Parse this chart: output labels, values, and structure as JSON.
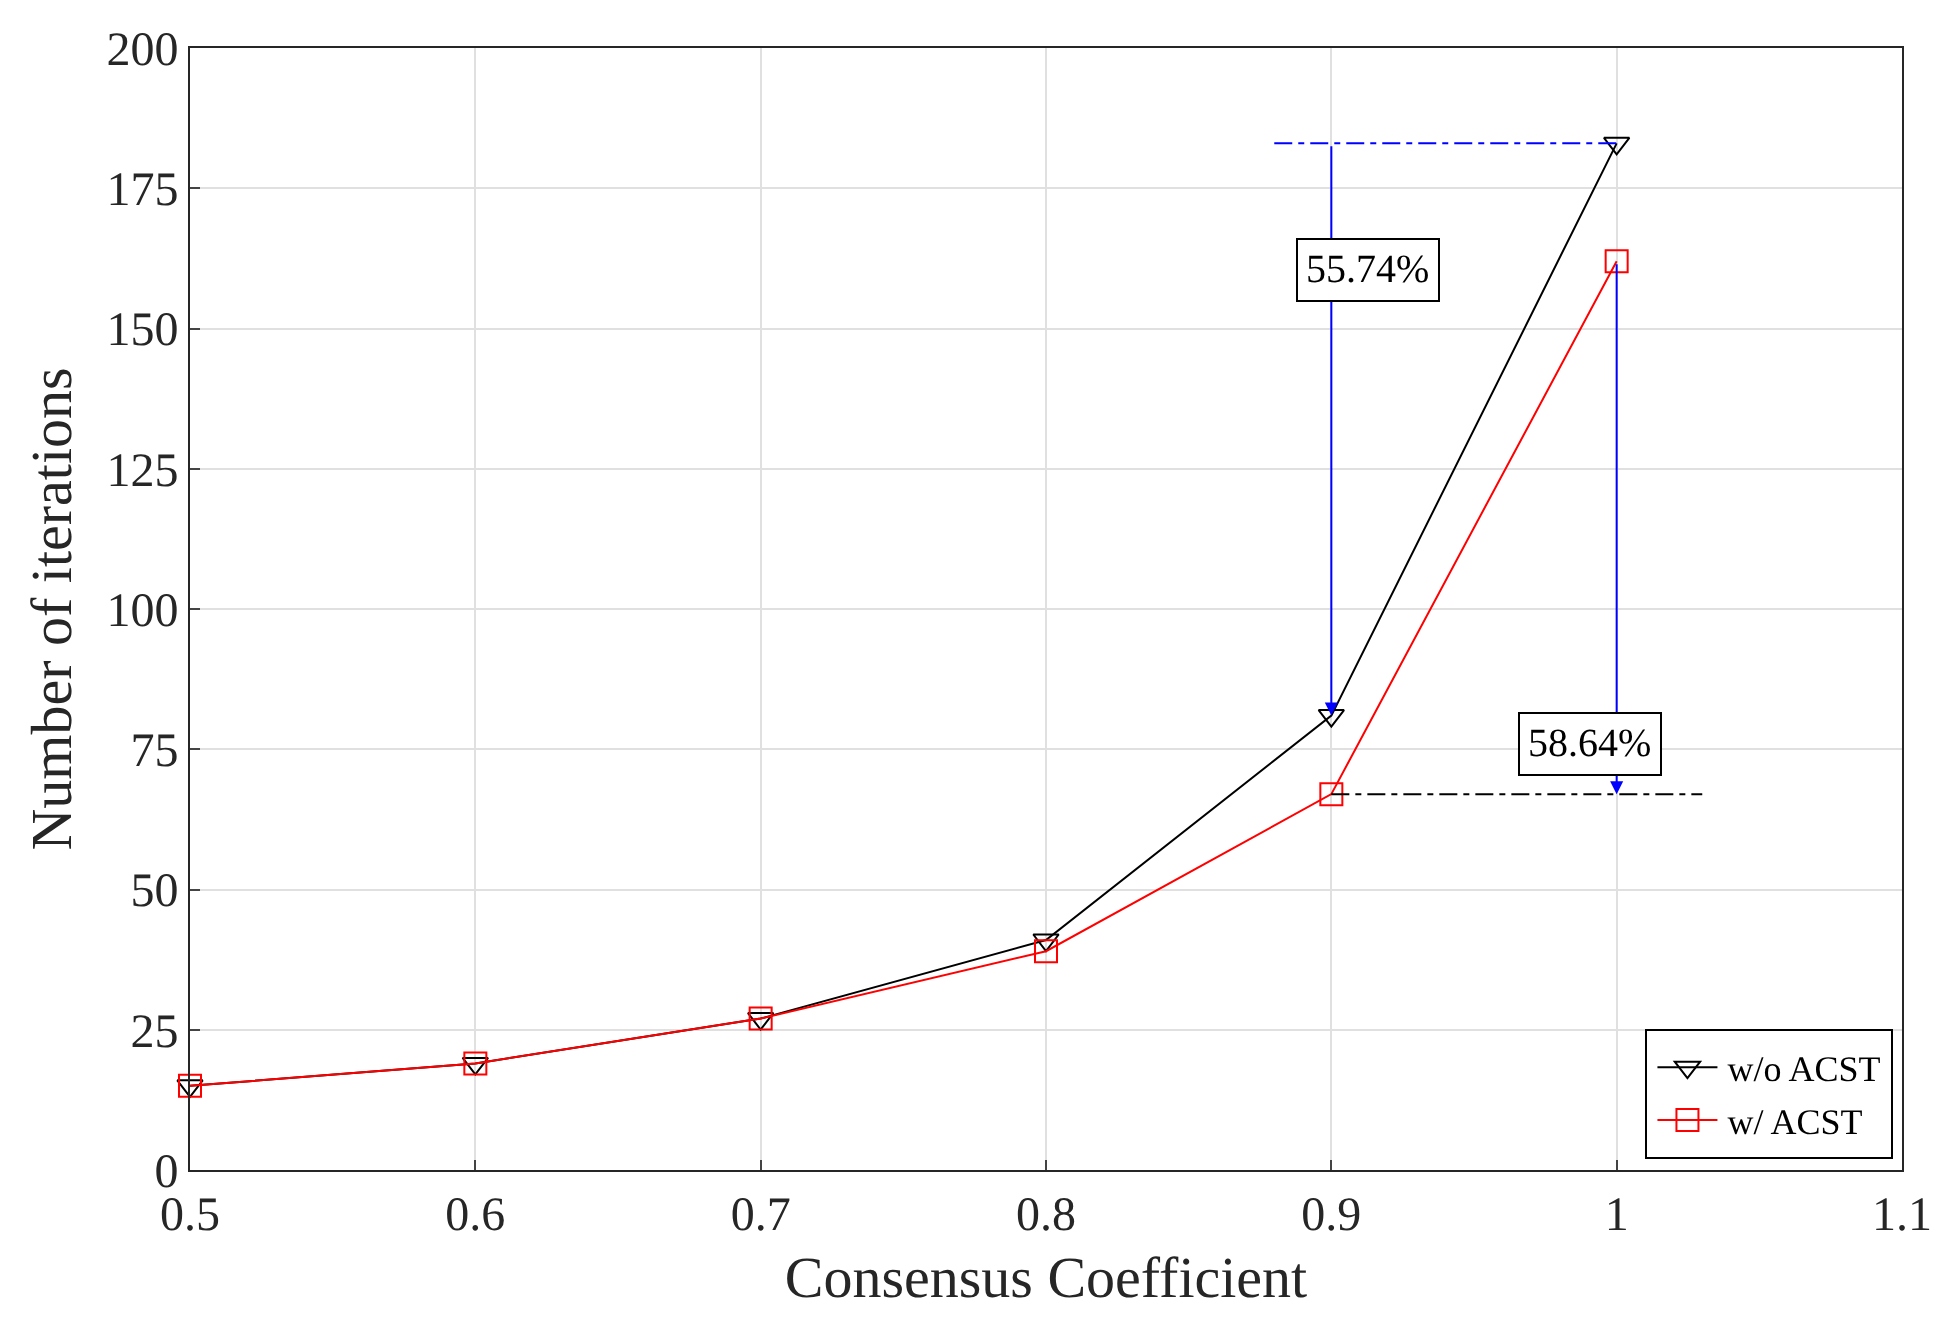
{
  "chart_data": {
    "type": "line",
    "xlabel": "Consensus Coefficient",
    "ylabel": "Number of iterations",
    "x": [
      0.5,
      0.6,
      0.7,
      0.8,
      0.9,
      1.0
    ],
    "series": [
      {
        "name": "w/o ACST",
        "color": "#000000",
        "marker": "triangle-down",
        "values": [
          15,
          19,
          27,
          41,
          81,
          183
        ]
      },
      {
        "name": "w/ ACST",
        "color": "#ff0000",
        "marker": "square",
        "values": [
          15,
          19,
          27,
          39,
          67,
          162
        ]
      },
      {
        "color": "#0000ff",
        "marker": "none",
        "line_style": "dashed",
        "x": [
          0.88,
          1.0
        ],
        "values": [
          183,
          183
        ]
      },
      {
        "color": "#000000",
        "marker": "none",
        "line_style": "dashed",
        "x": [
          0.9,
          1.03
        ],
        "values": [
          67,
          67
        ]
      }
    ],
    "annotations": [
      "55.74%",
      "58.64%"
    ],
    "xlim": [
      0.5,
      1.1
    ],
    "xticks": [
      0.5,
      0.6,
      0.7,
      0.8,
      0.9,
      {
        "value": 1.0,
        "label": "1"
      },
      1.1
    ],
    "ylim": [
      0,
      200
    ],
    "yticks": [
      0,
      25,
      50,
      75,
      100,
      125,
      150,
      175,
      200
    ],
    "grid": true,
    "legend": "bottom right",
    "line_style": "solid"
  }
}
